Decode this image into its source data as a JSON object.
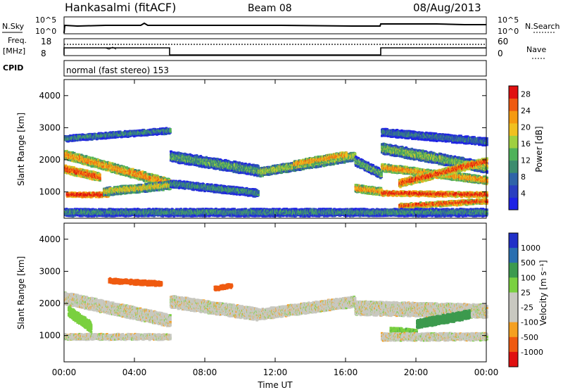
{
  "header": {
    "station": "Hankasalmi (fitACF)",
    "beam": "Beam 08",
    "date": "08/Aug/2013"
  },
  "top_panels": {
    "nsky_label": "N.Sky",
    "nsearch_label": "N.Search",
    "freq_label_1": "Freq.",
    "freq_label_2": "[MHz]",
    "cpid_label": "CPID",
    "nave_label": "Nave",
    "noise_ticks": [
      "10^5",
      "10^0"
    ],
    "freq_ticks": [
      "18",
      "8"
    ],
    "nave_ticks": [
      "60",
      "0"
    ],
    "cpid_text": "normal (fast stereo) 153"
  },
  "time_axis": {
    "title": "Time UT",
    "ticks": [
      "00:00",
      "04:00",
      "08:00",
      "12:00",
      "16:00",
      "20:00",
      "00:00"
    ]
  },
  "colors": {
    "power": [
      "#1e22e6",
      "#2a3fc0",
      "#2f64a8",
      "#3c8c6e",
      "#4fb25a",
      "#9fd040",
      "#f0c020",
      "#f59a10",
      "#ef5a10",
      "#e01010"
    ],
    "velocity": [
      "#e01010",
      "#ef5a10",
      "#f5a020",
      "#c8c8c0",
      "#c8c8c0",
      "#7ad040",
      "#3c9a4e",
      "#2a6fb0",
      "#2030c8"
    ]
  },
  "chart_data": [
    {
      "type": "heatmap",
      "title": "",
      "xlabel": "Time UT",
      "ylabel": "Slant Range [km]",
      "x_range_hours": [
        0,
        24
      ],
      "ylim": [
        180,
        4500
      ],
      "y_ticks": [
        1000,
        2000,
        3000,
        4000
      ],
      "colorbar_label": "Power [dB]",
      "colorbar_ticks": [
        4,
        8,
        12,
        16,
        20,
        24,
        28
      ],
      "colorbar_range": [
        0,
        30
      ]
    },
    {
      "type": "heatmap",
      "title": "",
      "xlabel": "Time UT",
      "ylabel": "Slant Range [km]",
      "x_range_hours": [
        0,
        24
      ],
      "ylim": [
        180,
        4500
      ],
      "y_ticks": [
        1000,
        2000,
        3000,
        4000
      ],
      "colorbar_label": "Velocity [m s⁻¹]",
      "colorbar_ticks": [
        1000,
        500,
        100,
        25,
        -25,
        -100,
        -500,
        -1000
      ]
    }
  ]
}
